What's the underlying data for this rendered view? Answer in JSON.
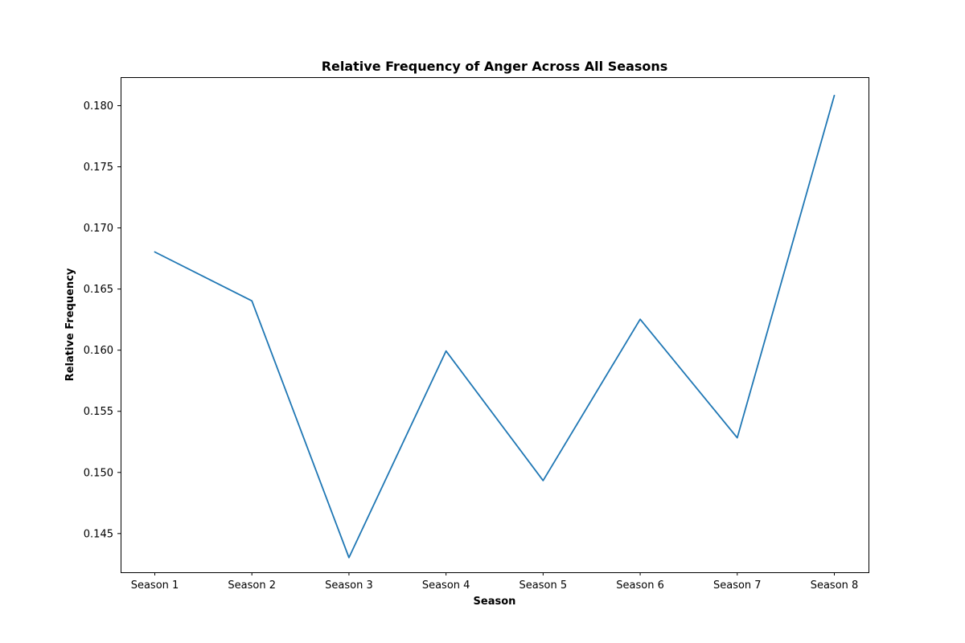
{
  "chart_data": {
    "type": "line",
    "title": "Relative Frequency of Anger Across All Seasons",
    "xlabel": "Season",
    "ylabel": "Relative Frequency",
    "categories": [
      "Season 1",
      "Season 2",
      "Season 3",
      "Season 4",
      "Season 5",
      "Season 6",
      "Season 7",
      "Season 8"
    ],
    "series": [
      {
        "values": [
          0.168,
          0.164,
          0.143,
          0.1599,
          0.1493,
          0.1625,
          0.1528,
          0.1808
        ]
      }
    ],
    "ylim": [
      0.1418,
      0.1823
    ],
    "yticks": [
      "0.145",
      "0.150",
      "0.155",
      "0.160",
      "0.165",
      "0.170",
      "0.175",
      "0.180"
    ],
    "grid": false,
    "colors": {
      "series": "#1f77b4"
    }
  }
}
